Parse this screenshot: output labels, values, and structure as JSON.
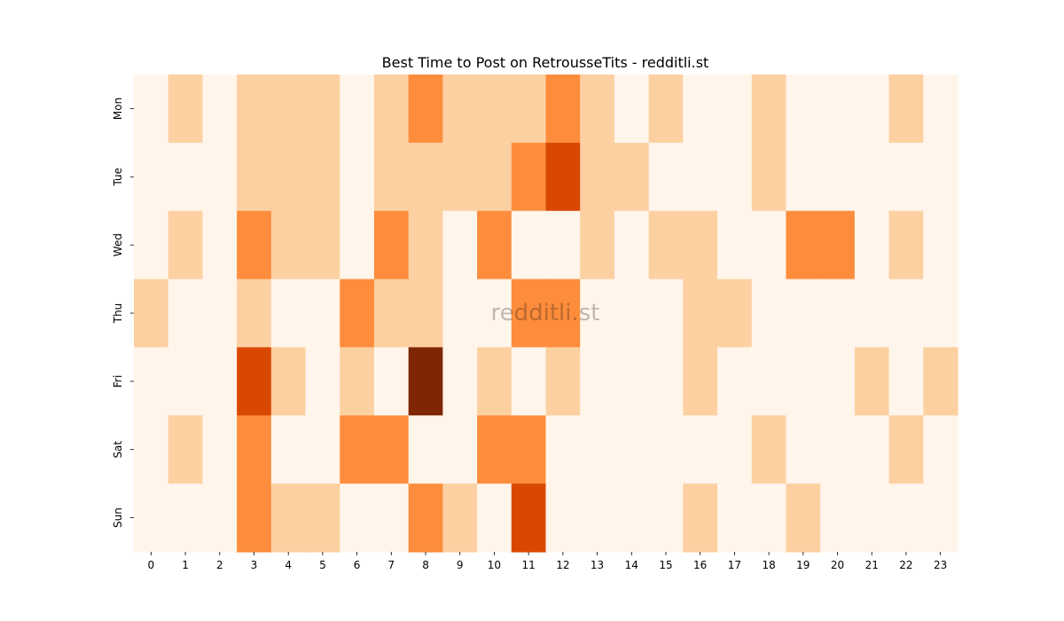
{
  "chart_data": {
    "type": "heatmap",
    "title": "Best Time to Post on RetrousseTits - redditli.st",
    "watermark": "redditli.st",
    "xlabel": "",
    "ylabel": "",
    "x_labels": [
      "0",
      "1",
      "2",
      "3",
      "4",
      "5",
      "6",
      "7",
      "8",
      "9",
      "10",
      "11",
      "12",
      "13",
      "14",
      "15",
      "16",
      "17",
      "18",
      "19",
      "20",
      "21",
      "22",
      "23"
    ],
    "y_labels": [
      "Mon",
      "Tue",
      "Wed",
      "Thu",
      "Fri",
      "Sat",
      "Sun"
    ],
    "values": [
      [
        0,
        1,
        0,
        1,
        1,
        1,
        0,
        1,
        2,
        1,
        1,
        1,
        2,
        1,
        0,
        1,
        0,
        0,
        1,
        0,
        0,
        0,
        1,
        0
      ],
      [
        0,
        0,
        0,
        1,
        1,
        1,
        0,
        1,
        1,
        1,
        1,
        2,
        3,
        1,
        1,
        0,
        0,
        0,
        1,
        0,
        0,
        0,
        0,
        0
      ],
      [
        0,
        1,
        0,
        2,
        1,
        1,
        0,
        2,
        1,
        0,
        2,
        0,
        0,
        1,
        0,
        1,
        1,
        0,
        0,
        2,
        2,
        0,
        1,
        0
      ],
      [
        1,
        0,
        0,
        1,
        0,
        0,
        2,
        1,
        1,
        0,
        0,
        2,
        2,
        0,
        0,
        0,
        1,
        1,
        0,
        0,
        0,
        0,
        0,
        0
      ],
      [
        0,
        0,
        0,
        3,
        1,
        0,
        1,
        0,
        4,
        0,
        1,
        0,
        1,
        0,
        0,
        0,
        1,
        0,
        0,
        0,
        0,
        1,
        0,
        1
      ],
      [
        0,
        1,
        0,
        2,
        0,
        0,
        2,
        2,
        0,
        0,
        2,
        2,
        0,
        0,
        0,
        0,
        0,
        0,
        1,
        0,
        0,
        0,
        1,
        0
      ],
      [
        0,
        0,
        0,
        2,
        1,
        1,
        0,
        0,
        2,
        1,
        0,
        3,
        0,
        0,
        0,
        0,
        1,
        0,
        0,
        1,
        0,
        0,
        0,
        0
      ]
    ],
    "value_range": [
      0,
      4
    ],
    "colormap": [
      "#fff5eb",
      "#fdd0a2",
      "#fd8d3c",
      "#d94801",
      "#7f2704"
    ],
    "legend": "none",
    "grid": false
  }
}
